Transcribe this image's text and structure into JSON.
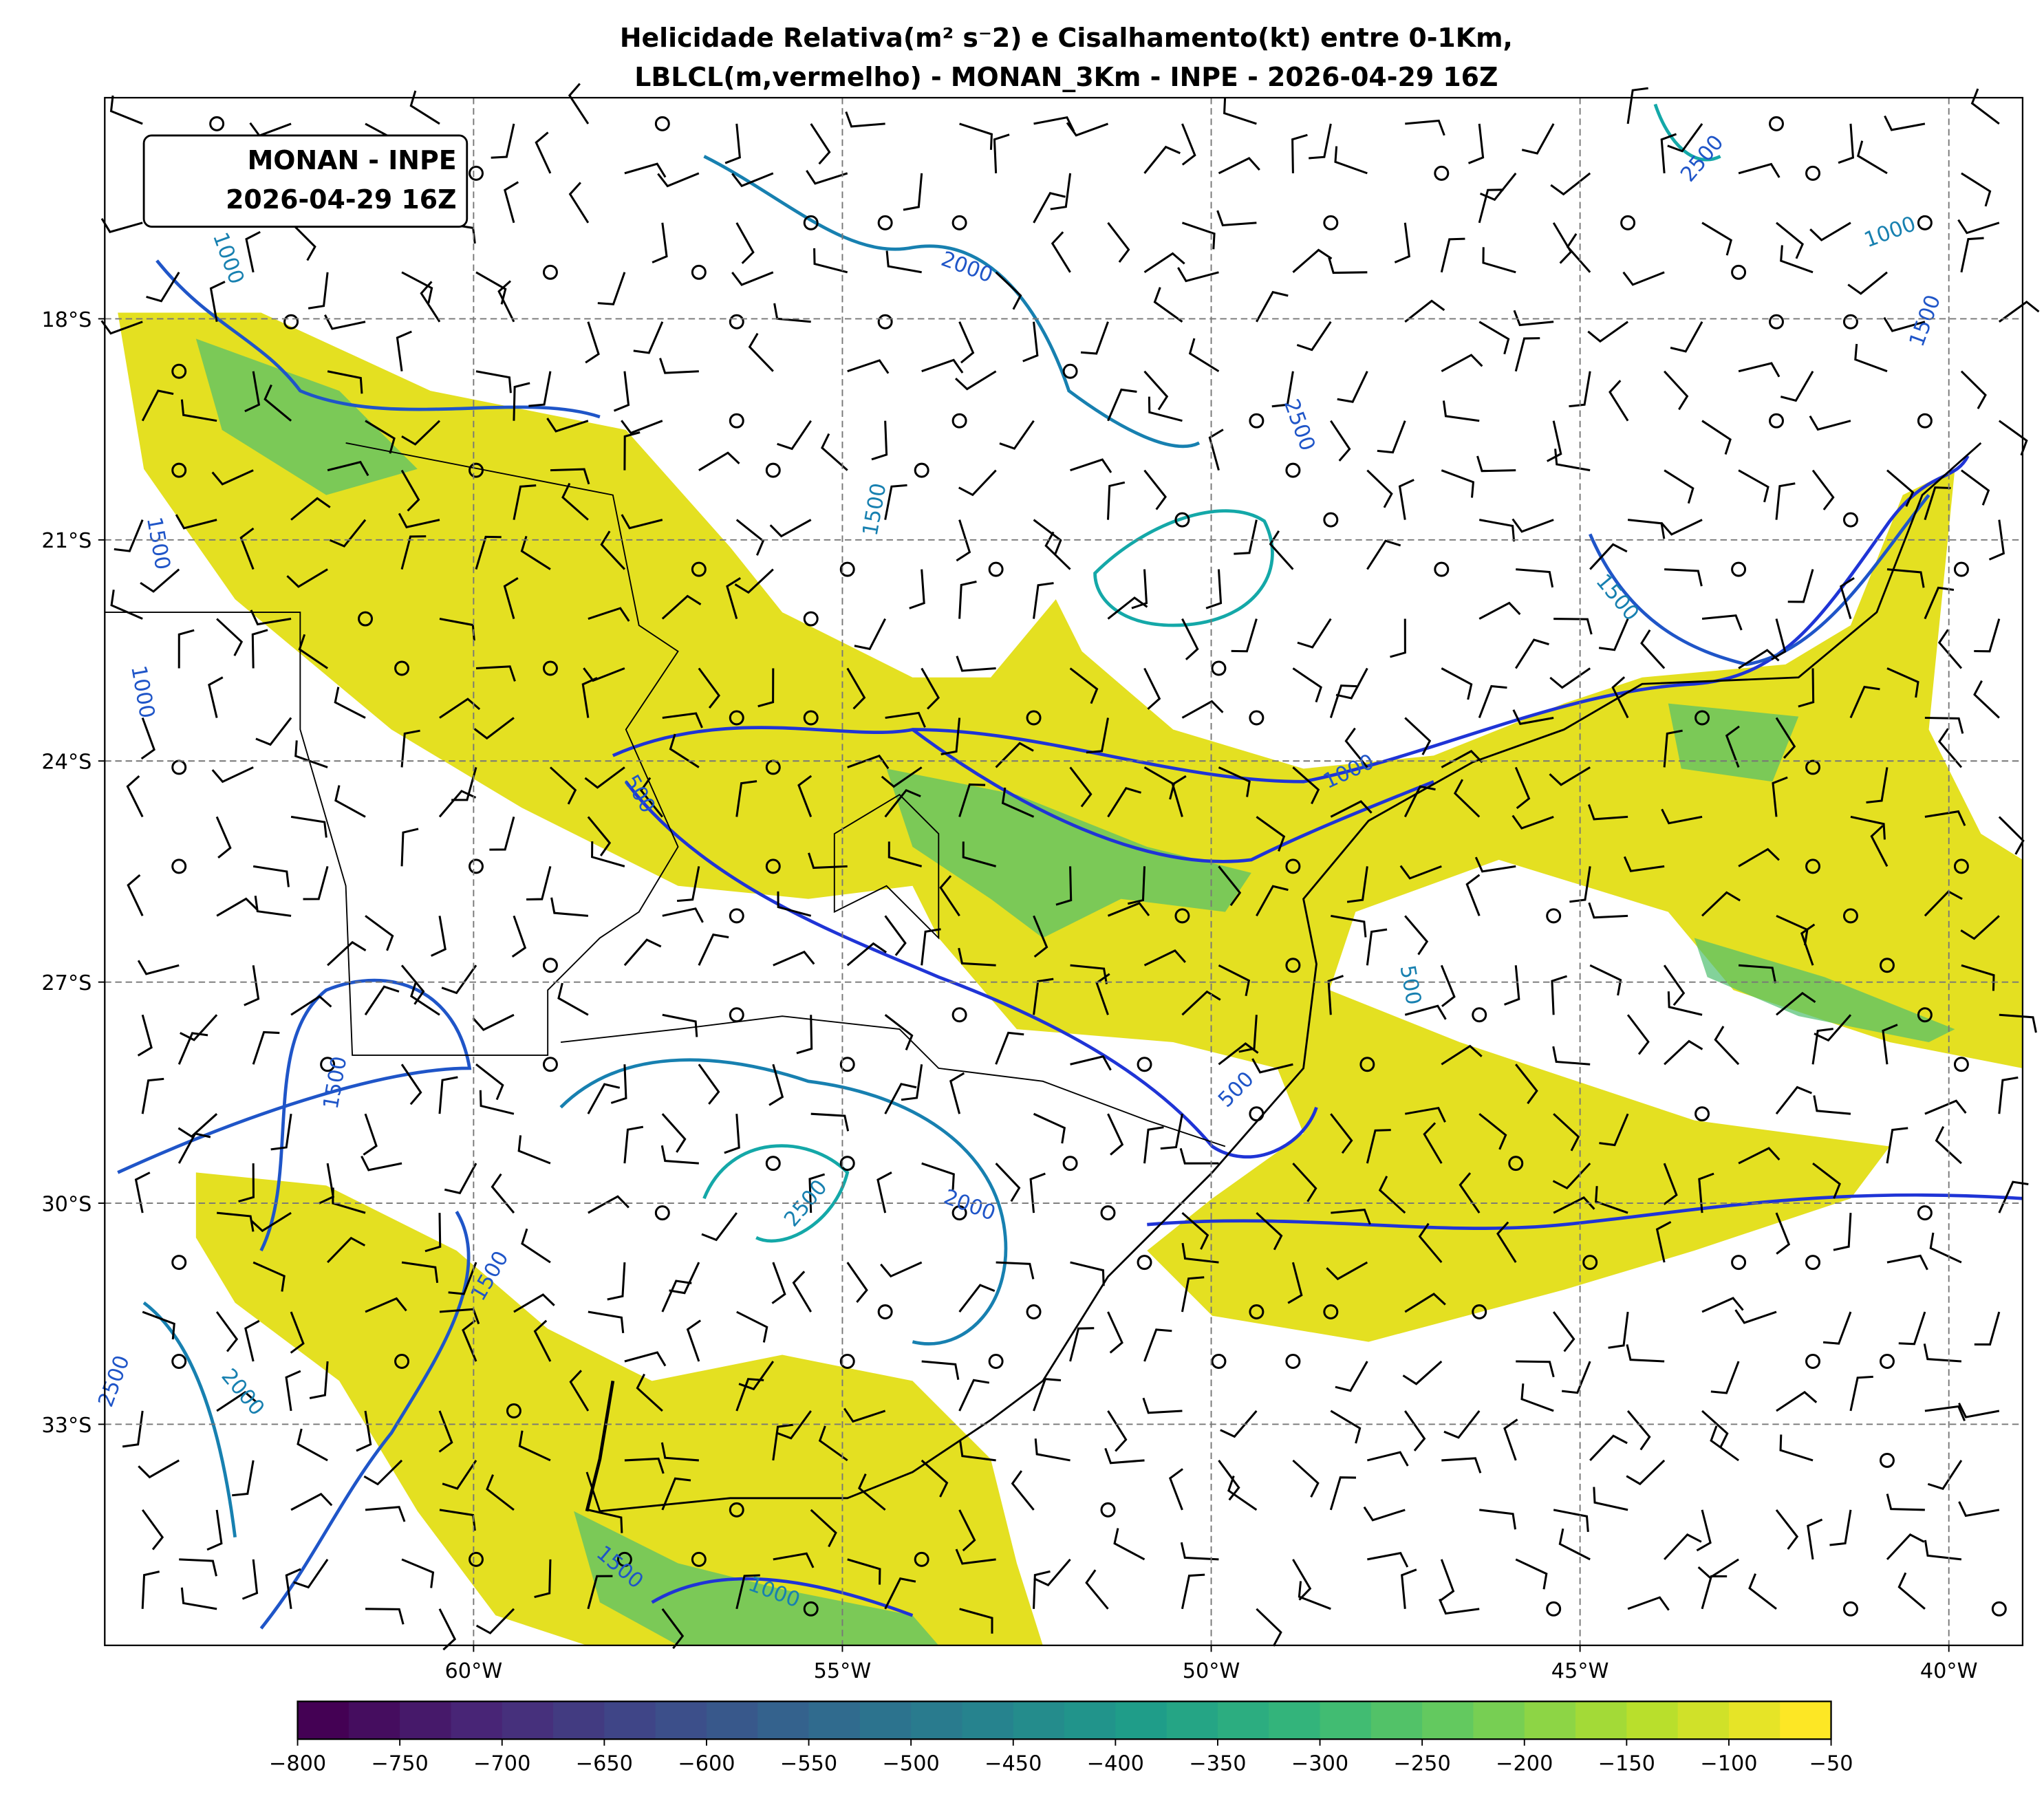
{
  "map": {
    "title": [
      "Helicidade Relativa(m² s⁻2) e Cisalhamento(kt) entre 0-1Km,",
      "LBLCL(m,vermelho) - MONAN_3Km - INPE - 2026-04-29 16Z"
    ],
    "info_box": [
      "MONAN - INPE",
      "2026-04-29 16Z"
    ],
    "xlim": [
      -65,
      -39
    ],
    "ylim": [
      -36,
      -15
    ],
    "xticks": [
      {
        "value": -60,
        "label": "60°W"
      },
      {
        "value": -55,
        "label": "55°W"
      },
      {
        "value": -50,
        "label": "50°W"
      },
      {
        "value": -45,
        "label": "45°W"
      },
      {
        "value": -40,
        "label": "40°W"
      }
    ],
    "yticks": [
      {
        "value": -18,
        "label": "18°S"
      },
      {
        "value": -21,
        "label": "21°S"
      },
      {
        "value": -24,
        "label": "24°S"
      },
      {
        "value": -27,
        "label": "27°S"
      },
      {
        "value": -30,
        "label": "30°S"
      },
      {
        "value": -33,
        "label": "33°S"
      }
    ],
    "grid": true,
    "colorbar": {
      "colormap": "viridis",
      "lim": [
        -800,
        -50
      ],
      "ticks": [
        {
          "value": -800,
          "label": "−800"
        },
        {
          "value": -750,
          "label": "−750"
        },
        {
          "value": -700,
          "label": "−700"
        },
        {
          "value": -650,
          "label": "−650"
        },
        {
          "value": -600,
          "label": "−600"
        },
        {
          "value": -550,
          "label": "−550"
        },
        {
          "value": -500,
          "label": "−500"
        },
        {
          "value": -450,
          "label": "−450"
        },
        {
          "value": -400,
          "label": "−400"
        },
        {
          "value": -350,
          "label": "−350"
        },
        {
          "value": -300,
          "label": "−300"
        },
        {
          "value": -250,
          "label": "−250"
        },
        {
          "value": -200,
          "label": "−200"
        },
        {
          "value": -150,
          "label": "−150"
        },
        {
          "value": -100,
          "label": "−100"
        },
        {
          "value": -50,
          "label": "−50"
        }
      ]
    },
    "contour_labels": [
      "1000",
      "2000",
      "2500",
      "1000",
      "1500",
      "2500",
      "1500",
      "1500",
      "1000",
      "1500",
      "500",
      "1000",
      "500",
      "500",
      "1500",
      "2500",
      "2000",
      "1500",
      "2000",
      "2500",
      "1500",
      "1000"
    ]
  }
}
